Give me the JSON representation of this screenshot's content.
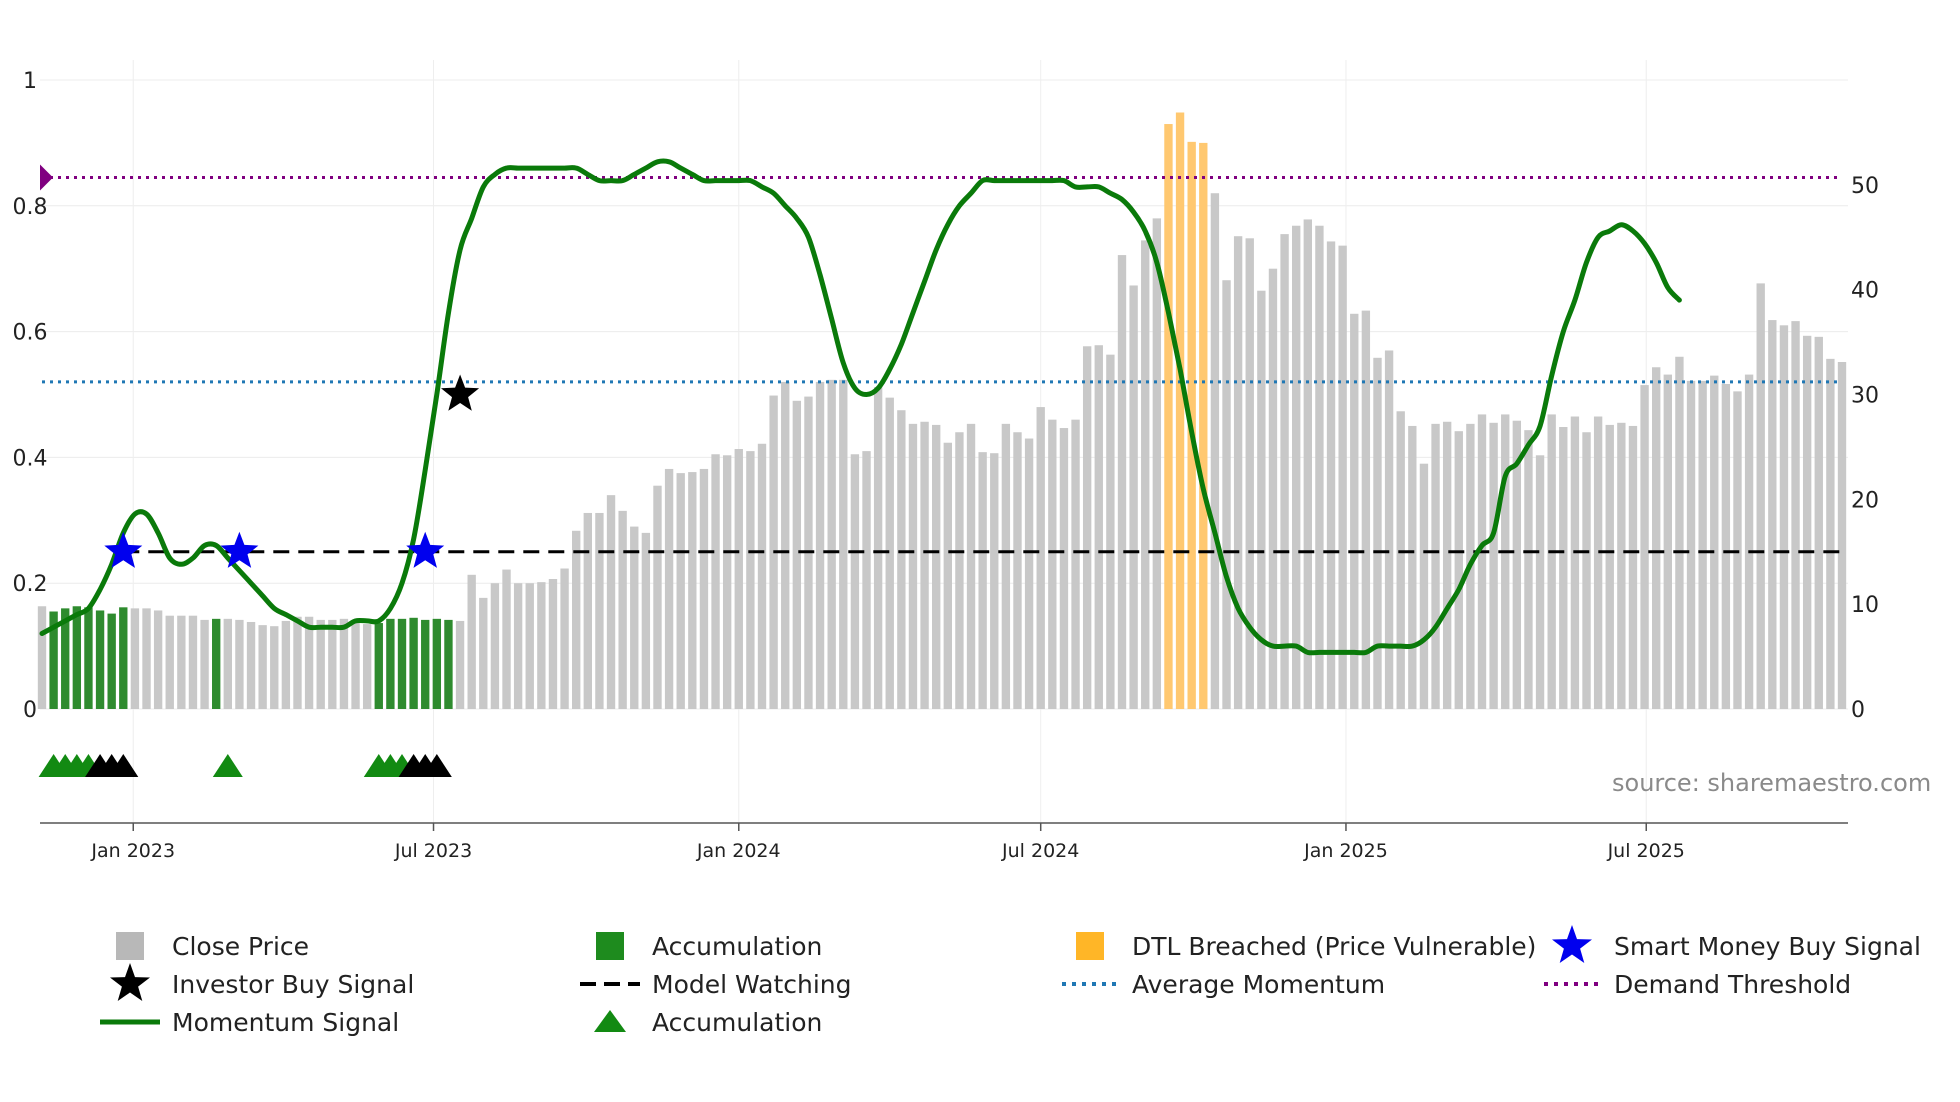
{
  "chart_data": {
    "type": "bar",
    "title": "",
    "source": "source: sharemaestro.com",
    "x_range": [
      "2022-11-07",
      "2025-10-27"
    ],
    "x_ticks": [
      {
        "date": "2023-01-01",
        "label": "Jan 2023"
      },
      {
        "date": "2023-07-01",
        "label": "Jul 2023"
      },
      {
        "date": "2024-01-01",
        "label": "Jan 2024"
      },
      {
        "date": "2024-07-01",
        "label": "Jul 2024"
      },
      {
        "date": "2025-01-01",
        "label": "Jan 2025"
      },
      {
        "date": "2025-07-01",
        "label": "Jul 2025"
      }
    ],
    "left_axis": {
      "min": 0,
      "max": 1,
      "ticks": [
        0,
        0.2,
        0.4,
        0.6,
        0.8,
        1
      ],
      "tick_labels": [
        "0",
        "0.2",
        "0.4",
        "0.6",
        "0.8",
        "1"
      ]
    },
    "right_axis": {
      "min": 0,
      "max": 60,
      "ticks": [
        0,
        10,
        20,
        30,
        40,
        50
      ],
      "tick_labels": [
        "0",
        "10",
        "20",
        "30",
        "40",
        "50"
      ]
    },
    "close_price": {
      "start_date": "2022-11-07",
      "interval_days": 7,
      "values": [
        9.8,
        9.3,
        9.6,
        9.8,
        9.7,
        9.4,
        9.1,
        9.7,
        9.6,
        9.6,
        9.4,
        8.9,
        8.9,
        8.9,
        8.5,
        8.6,
        8.6,
        8.5,
        8.3,
        8.0,
        7.9,
        8.4,
        8.8,
        8.8,
        8.5,
        8.5,
        8.6,
        8.4,
        8.1,
        8.2,
        8.6,
        8.6,
        8.7,
        8.5,
        8.6,
        8.5,
        8.4,
        12.8,
        10.6,
        12.0,
        13.3,
        12.0,
        12.0,
        12.1,
        12.4,
        13.4,
        17.0,
        18.7,
        18.7,
        20.4,
        18.9,
        17.4,
        16.8,
        21.3,
        22.9,
        22.5,
        22.6,
        22.9,
        24.3,
        24.2,
        24.8,
        24.6,
        25.3,
        29.9,
        31.2,
        29.4,
        29.8,
        31.2,
        31.4,
        31.4,
        24.3,
        24.6,
        30.7,
        29.7,
        28.5,
        27.2,
        27.4,
        27.1,
        25.4,
        26.4,
        27.2,
        24.5,
        24.4,
        27.2,
        26.4,
        25.8,
        28.8,
        27.6,
        26.8,
        27.6,
        34.6,
        34.7,
        33.8,
        43.3,
        40.4,
        44.7,
        46.8,
        55.8,
        56.9,
        54.1,
        54.0,
        49.2,
        40.9,
        45.1,
        44.9,
        39.9,
        42.0,
        45.3,
        46.1,
        46.7,
        46.1,
        44.6,
        44.2,
        37.7,
        38.0,
        33.5,
        34.2,
        28.4,
        27.0,
        23.4,
        27.2,
        27.4,
        26.5,
        27.2,
        28.1,
        27.3,
        28.1,
        27.5,
        26.6,
        24.2,
        28.1,
        26.9,
        27.9,
        26.4,
        27.9,
        27.1,
        27.3,
        27.0,
        30.9,
        32.6,
        31.9,
        33.6,
        31.3,
        31.3,
        31.8,
        31.0,
        30.3,
        31.9,
        40.6,
        37.1,
        36.6,
        37.0,
        35.6,
        35.5,
        33.4,
        33.1
      ]
    },
    "accumulation_bar_indices": [
      1,
      2,
      3,
      4,
      5,
      6,
      7,
      15,
      29,
      30,
      31,
      32,
      33,
      34,
      35
    ],
    "dtl_breached_bar_indices": [
      97,
      98,
      99,
      100
    ],
    "momentum_signal": {
      "start_date": "2022-11-07",
      "interval_days": 7,
      "values": [
        0.12,
        0.13,
        0.14,
        0.15,
        0.16,
        0.19,
        0.23,
        0.28,
        0.31,
        0.31,
        0.28,
        0.24,
        0.23,
        0.24,
        0.26,
        0.26,
        0.24,
        0.22,
        0.2,
        0.18,
        0.16,
        0.15,
        0.14,
        0.13,
        0.13,
        0.13,
        0.13,
        0.14,
        0.14,
        0.14,
        0.16,
        0.2,
        0.27,
        0.38,
        0.5,
        0.63,
        0.73,
        0.78,
        0.83,
        0.85,
        0.86,
        0.86,
        0.86,
        0.86,
        0.86,
        0.86,
        0.86,
        0.85,
        0.84,
        0.84,
        0.84,
        0.85,
        0.86,
        0.87,
        0.87,
        0.86,
        0.85,
        0.84,
        0.84,
        0.84,
        0.84,
        0.84,
        0.83,
        0.82,
        0.8,
        0.78,
        0.75,
        0.69,
        0.62,
        0.55,
        0.51,
        0.5,
        0.51,
        0.54,
        0.58,
        0.63,
        0.68,
        0.73,
        0.77,
        0.8,
        0.82,
        0.84,
        0.84,
        0.84,
        0.84,
        0.84,
        0.84,
        0.84,
        0.84,
        0.83,
        0.83,
        0.83,
        0.82,
        0.81,
        0.79,
        0.76,
        0.71,
        0.63,
        0.54,
        0.44,
        0.35,
        0.28,
        0.21,
        0.16,
        0.13,
        0.11,
        0.1,
        0.1,
        0.1,
        0.09,
        0.09,
        0.09,
        0.09,
        0.09,
        0.09,
        0.1,
        0.1,
        0.1,
        0.1,
        0.11,
        0.13,
        0.16,
        0.19,
        0.23,
        0.26,
        0.28,
        0.37,
        0.39,
        0.42,
        0.45,
        0.53,
        0.6,
        0.65,
        0.71,
        0.75,
        0.76,
        0.77,
        0.76,
        0.74,
        0.71,
        0.67,
        0.65
      ]
    },
    "thresholds": {
      "average_momentum": 0.52,
      "demand_threshold": 0.845,
      "model_watching": 0.25
    },
    "demand_threshold_marker_value": 0.845,
    "investor_buy_signal_points": [
      {
        "date": "2023-07-17",
        "value": 0.5
      }
    ],
    "smart_money_buy_signal_points": [
      {
        "date": "2022-12-26",
        "value": 0.25
      },
      {
        "date": "2023-03-06",
        "value": 0.25
      },
      {
        "date": "2023-06-26",
        "value": 0.25
      }
    ],
    "accumulation_markers": [
      {
        "date": "2022-11-14",
        "color": "green"
      },
      {
        "date": "2022-11-21",
        "color": "green"
      },
      {
        "date": "2022-11-28",
        "color": "green"
      },
      {
        "date": "2022-12-05",
        "color": "green"
      },
      {
        "date": "2022-12-12",
        "color": "black"
      },
      {
        "date": "2022-12-19",
        "color": "black"
      },
      {
        "date": "2022-12-26",
        "color": "black"
      },
      {
        "date": "2023-02-27",
        "color": "green"
      },
      {
        "date": "2023-05-29",
        "color": "green"
      },
      {
        "date": "2023-06-05",
        "color": "green"
      },
      {
        "date": "2023-06-12",
        "color": "green"
      },
      {
        "date": "2023-06-19",
        "color": "black"
      },
      {
        "date": "2023-06-26",
        "color": "black"
      },
      {
        "date": "2023-07-03",
        "color": "black"
      }
    ],
    "colors": {
      "close_price": "#c8c8c8",
      "accumulation_bar": "#2e8b2e",
      "dtl_breached": "#ffc870",
      "momentum": "#0a7a0a",
      "average_momentum": "#1f77b4",
      "demand_threshold": "#800080",
      "model_watching": "#000000",
      "smart_money_star": "#0000ee",
      "investor_star": "#000000",
      "accumulation_marker_green": "#128a12",
      "accumulation_marker_black": "#000000"
    },
    "legend": [
      {
        "label": "Close Price",
        "symbol": "square",
        "color": "#b8b8b8"
      },
      {
        "label": "Accumulation",
        "symbol": "square",
        "color": "#1e8b1e"
      },
      {
        "label": "DTL Breached (Price Vulnerable)",
        "symbol": "square",
        "color": "#ffb627"
      },
      {
        "label": "Smart Money Buy Signal",
        "symbol": "star",
        "color": "#0000ee"
      },
      {
        "label": "Investor Buy Signal",
        "symbol": "star",
        "color": "#000000"
      },
      {
        "label": "Model Watching",
        "symbol": "dash",
        "color": "#000000"
      },
      {
        "label": "Average Momentum",
        "symbol": "dot",
        "color": "#1f77b4"
      },
      {
        "label": "Demand Threshold",
        "symbol": "dot",
        "color": "#800080"
      },
      {
        "label": "Momentum Signal",
        "symbol": "line",
        "color": "#0a7a0a"
      },
      {
        "label": "Accumulation",
        "symbol": "triangle",
        "color": "#128a12"
      }
    ]
  }
}
